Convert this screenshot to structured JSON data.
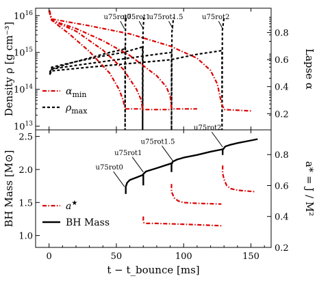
{
  "chart_data": [
    {
      "type": "line",
      "panel": "top",
      "xlabel": "",
      "ylabel_left": "Density ρ [g cm⁻³]",
      "ylabel_right": "Lapse α",
      "xlim": [
        -10,
        165
      ],
      "ylim_left_log10": [
        12.9,
        16.2
      ],
      "ylim_right": [
        0.08,
        0.98
      ],
      "yticks_left": [
        {
          "value_log10": 13,
          "label": "10",
          "exp": "13"
        },
        {
          "value_log10": 14,
          "label": "10",
          "exp": "14"
        },
        {
          "value_log10": 15,
          "label": "10",
          "exp": "15"
        },
        {
          "value_log10": 16,
          "label": "10",
          "exp": "16"
        }
      ],
      "yticks_right": [
        "0.2",
        "0.4",
        "0.6",
        "0.8"
      ],
      "legend": {
        "placement": "lower-left",
        "entries": [
          {
            "label": "α",
            "sub": "min",
            "style": "red-dashdot"
          },
          {
            "label": "ρ",
            "sub": "max",
            "style": "black-dashed"
          }
        ]
      },
      "annotations": [
        {
          "text": "u75rot0",
          "x": 56
        },
        {
          "text": "u75rot1",
          "x": 70
        },
        {
          "text": "u75rot1.5",
          "x": 92
        },
        {
          "text": "u75rot2",
          "x": 129
        }
      ],
      "series": [
        {
          "model": "u75rot0",
          "quantity": "rho_max",
          "color": "#000000",
          "x": [
            0.5,
            2,
            15,
            30,
            45,
            55,
            56.5,
            56.5,
            56.8,
            57.2
          ],
          "log10_y": [
            14.45,
            14.55,
            14.7,
            14.85,
            15.0,
            15.08,
            15.15,
            12.9,
            15.95,
            15.85
          ]
        },
        {
          "model": "u75rot1",
          "quantity": "rho_max",
          "color": "#000000",
          "x": [
            0.5,
            2,
            20,
            40,
            55,
            65,
            69.5,
            69.5,
            69.8,
            70.5
          ],
          "log10_y": [
            14.45,
            14.6,
            14.75,
            14.9,
            15.0,
            15.1,
            15.15,
            12.9,
            15.6,
            15.95
          ]
        },
        {
          "model": "u75rot1.5",
          "quantity": "rho_max",
          "color": "#000000",
          "x": [
            0.5,
            2,
            20,
            40,
            60,
            80,
            91,
            91,
            91.3,
            92.5
          ],
          "log10_y": [
            14.4,
            14.55,
            14.65,
            14.75,
            14.85,
            14.95,
            15.0,
            12.9,
            15.55,
            15.95
          ]
        },
        {
          "model": "u75rot2",
          "quantity": "rho_max",
          "color": "#000000",
          "x": [
            0.5,
            2,
            30,
            60,
            90,
            110,
            128.5,
            128.5,
            128.8,
            130
          ],
          "log10_y": [
            14.4,
            14.5,
            14.6,
            14.7,
            14.8,
            14.95,
            15.05,
            12.9,
            15.6,
            15.95
          ]
        },
        {
          "model": "u75rot0",
          "quantity": "alpha_min",
          "color": "#dd0000",
          "x": [
            0,
            0.5,
            2,
            15,
            30,
            45,
            52,
            55,
            56.5,
            58,
            70
          ],
          "y": [
            0.96,
            0.96,
            0.89,
            0.79,
            0.66,
            0.5,
            0.38,
            0.3,
            0.235,
            0.235,
            0.235
          ]
        },
        {
          "model": "u75rot1",
          "quantity": "alpha_min",
          "color": "#dd0000",
          "x": [
            0,
            2,
            20,
            40,
            55,
            65,
            68.5,
            69.5,
            71,
            90
          ],
          "y": [
            0.96,
            0.89,
            0.81,
            0.67,
            0.53,
            0.38,
            0.3,
            0.23,
            0.23,
            0.23
          ]
        },
        {
          "model": "u75rot1.5",
          "quantity": "alpha_min",
          "color": "#dd0000",
          "x": [
            0,
            2,
            20,
            40,
            60,
            80,
            87,
            90,
            91,
            93,
            110
          ],
          "y": [
            0.96,
            0.89,
            0.83,
            0.74,
            0.63,
            0.48,
            0.4,
            0.33,
            0.24,
            0.235,
            0.235
          ]
        },
        {
          "model": "u75rot2",
          "quantity": "alpha_min",
          "color": "#dd0000",
          "x": [
            0,
            2,
            30,
            60,
            90,
            110,
            120,
            125,
            128,
            130,
            150
          ],
          "y": [
            0.96,
            0.9,
            0.85,
            0.79,
            0.7,
            0.61,
            0.52,
            0.42,
            0.28,
            0.23,
            0.22
          ]
        }
      ]
    },
    {
      "type": "line",
      "panel": "bottom",
      "xlabel": "t − t_bounce [ms]",
      "ylabel_left": "BH Mass [M⊙]",
      "ylabel_right": "a* = J / M²",
      "xlim": [
        -10,
        165
      ],
      "ylim_left": [
        0.82,
        2.6
      ],
      "ylim_right": [
        0.2,
        0.96
      ],
      "xticks": [
        "0",
        "50",
        "100",
        "150"
      ],
      "yticks_left": [
        "1.0",
        "1.5",
        "2.0",
        "2.5"
      ],
      "yticks_right": [
        "0.2",
        "0.4",
        "0.6",
        "0.8"
      ],
      "legend": {
        "placement": "lower-left",
        "entries": [
          {
            "label": "a",
            "sup": "★",
            "style": "red-dashdot"
          },
          {
            "label": "BH Mass",
            "style": "black-solid"
          }
        ]
      },
      "annotations": [
        {
          "text": "u75rot0",
          "x": 56,
          "y": 1.74
        },
        {
          "text": "u75rot1",
          "x": 70,
          "y": 1.96
        },
        {
          "text": "u75rot1.5",
          "x": 92,
          "y": 2.13
        },
        {
          "text": "u75rot2",
          "x": 129,
          "y": 2.34
        }
      ],
      "series": [
        {
          "quantity": "bh_mass",
          "color": "#000000",
          "x": [
            57,
            57,
            58,
            60,
            65,
            70
          ],
          "y": [
            1.63,
            1.74,
            1.8,
            1.84,
            1.88,
            1.92
          ]
        },
        {
          "quantity": "bh_mass",
          "color": "#000000",
          "x": [
            70,
            70,
            72,
            80,
            92
          ],
          "y": [
            1.76,
            1.93,
            1.97,
            2.02,
            2.1
          ]
        },
        {
          "quantity": "bh_mass",
          "color": "#000000",
          "x": [
            91,
            91,
            92,
            95,
            100,
            110,
            120,
            130
          ],
          "y": [
            1.96,
            2.09,
            2.12,
            2.15,
            2.18,
            2.22,
            2.27,
            2.31
          ]
        },
        {
          "quantity": "bh_mass",
          "color": "#000000",
          "x": [
            129,
            129,
            131,
            134,
            140,
            150,
            155
          ],
          "y": [
            2.22,
            2.3,
            2.35,
            2.37,
            2.4,
            2.44,
            2.46
          ]
        },
        {
          "quantity": "spin",
          "color": "#dd0000",
          "x": [
            70,
            70,
            70.5,
            72,
            80,
            100,
            128
          ],
          "y": [
            0.4,
            0.375,
            0.36,
            0.355,
            0.355,
            0.35,
            0.34
          ]
        },
        {
          "quantity": "spin",
          "color": "#dd0000",
          "x": [
            91,
            91,
            93,
            96,
            100,
            110,
            128
          ],
          "y": [
            0.61,
            0.56,
            0.52,
            0.5,
            0.49,
            0.485,
            0.48
          ]
        },
        {
          "quantity": "spin",
          "color": "#dd0000",
          "x": [
            129,
            129,
            130,
            132,
            135,
            140,
            153
          ],
          "y": [
            0.73,
            0.68,
            0.64,
            0.6,
            0.58,
            0.57,
            0.56
          ]
        }
      ]
    }
  ]
}
